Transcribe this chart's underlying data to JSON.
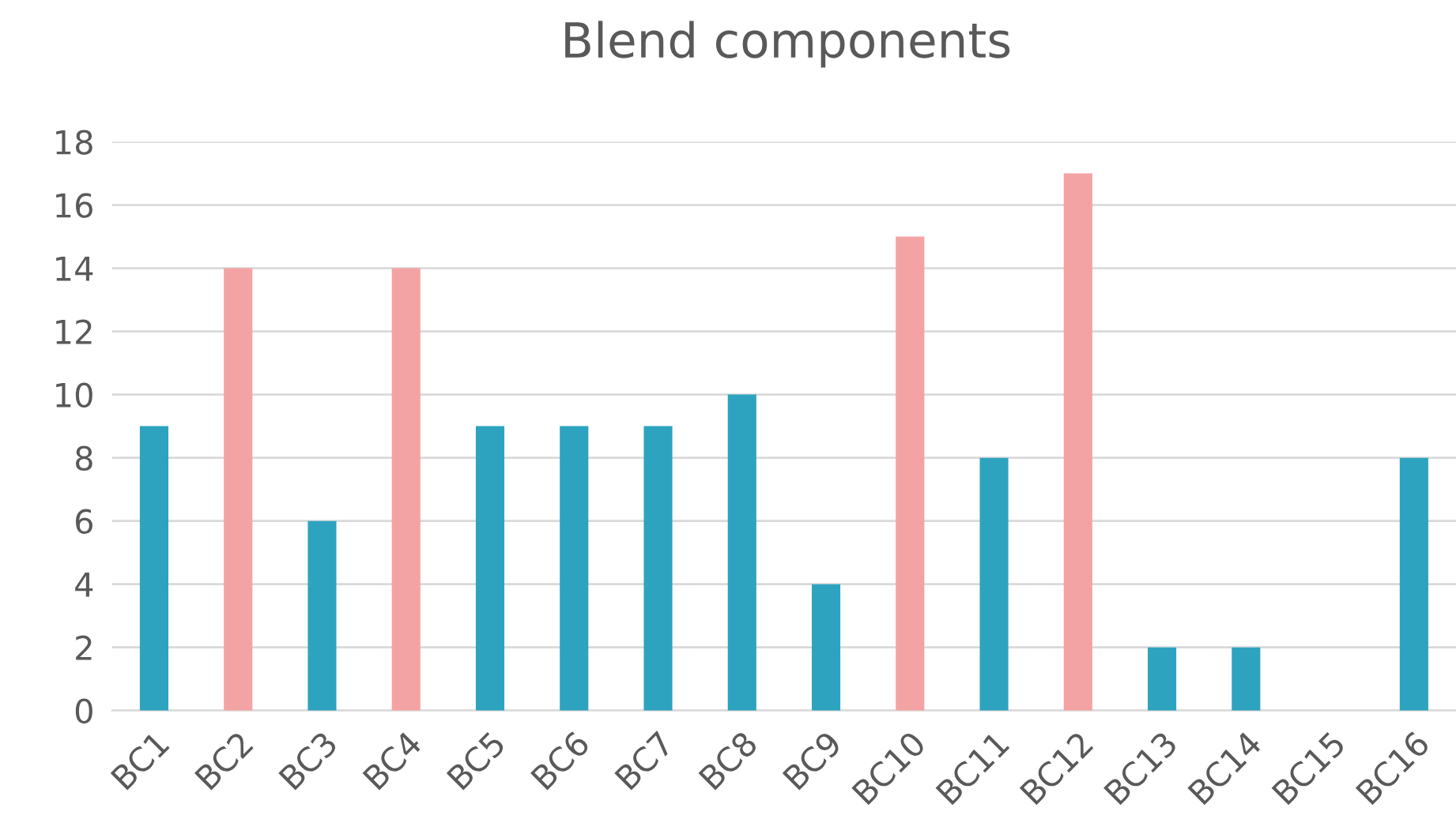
{
  "chart_data": {
    "type": "bar",
    "title": "Blend components",
    "categories": [
      "BC1",
      "BC2",
      "BC3",
      "BC4",
      "BC5",
      "BC6",
      "BC7",
      "BC8",
      "BC9",
      "BC10",
      "BC11",
      "BC12",
      "BC13",
      "BC14",
      "BC15",
      "BC16"
    ],
    "values": [
      9,
      14,
      6,
      14,
      9,
      9,
      9,
      10,
      4,
      15,
      8,
      17,
      2,
      2,
      0,
      8
    ],
    "colors": [
      "#2ea3c0",
      "#f4a3a5",
      "#2ea3c0",
      "#f4a3a5",
      "#2ea3c0",
      "#2ea3c0",
      "#2ea3c0",
      "#2ea3c0",
      "#2ea3c0",
      "#f4a3a5",
      "#2ea3c0",
      "#f4a3a5",
      "#2ea3c0",
      "#2ea3c0",
      "#2ea3c0",
      "#2ea3c0"
    ],
    "ylim": [
      0,
      18
    ],
    "yticks": [
      0,
      2,
      4,
      6,
      8,
      10,
      12,
      14,
      16,
      18
    ],
    "grid": "y",
    "legend": false
  }
}
